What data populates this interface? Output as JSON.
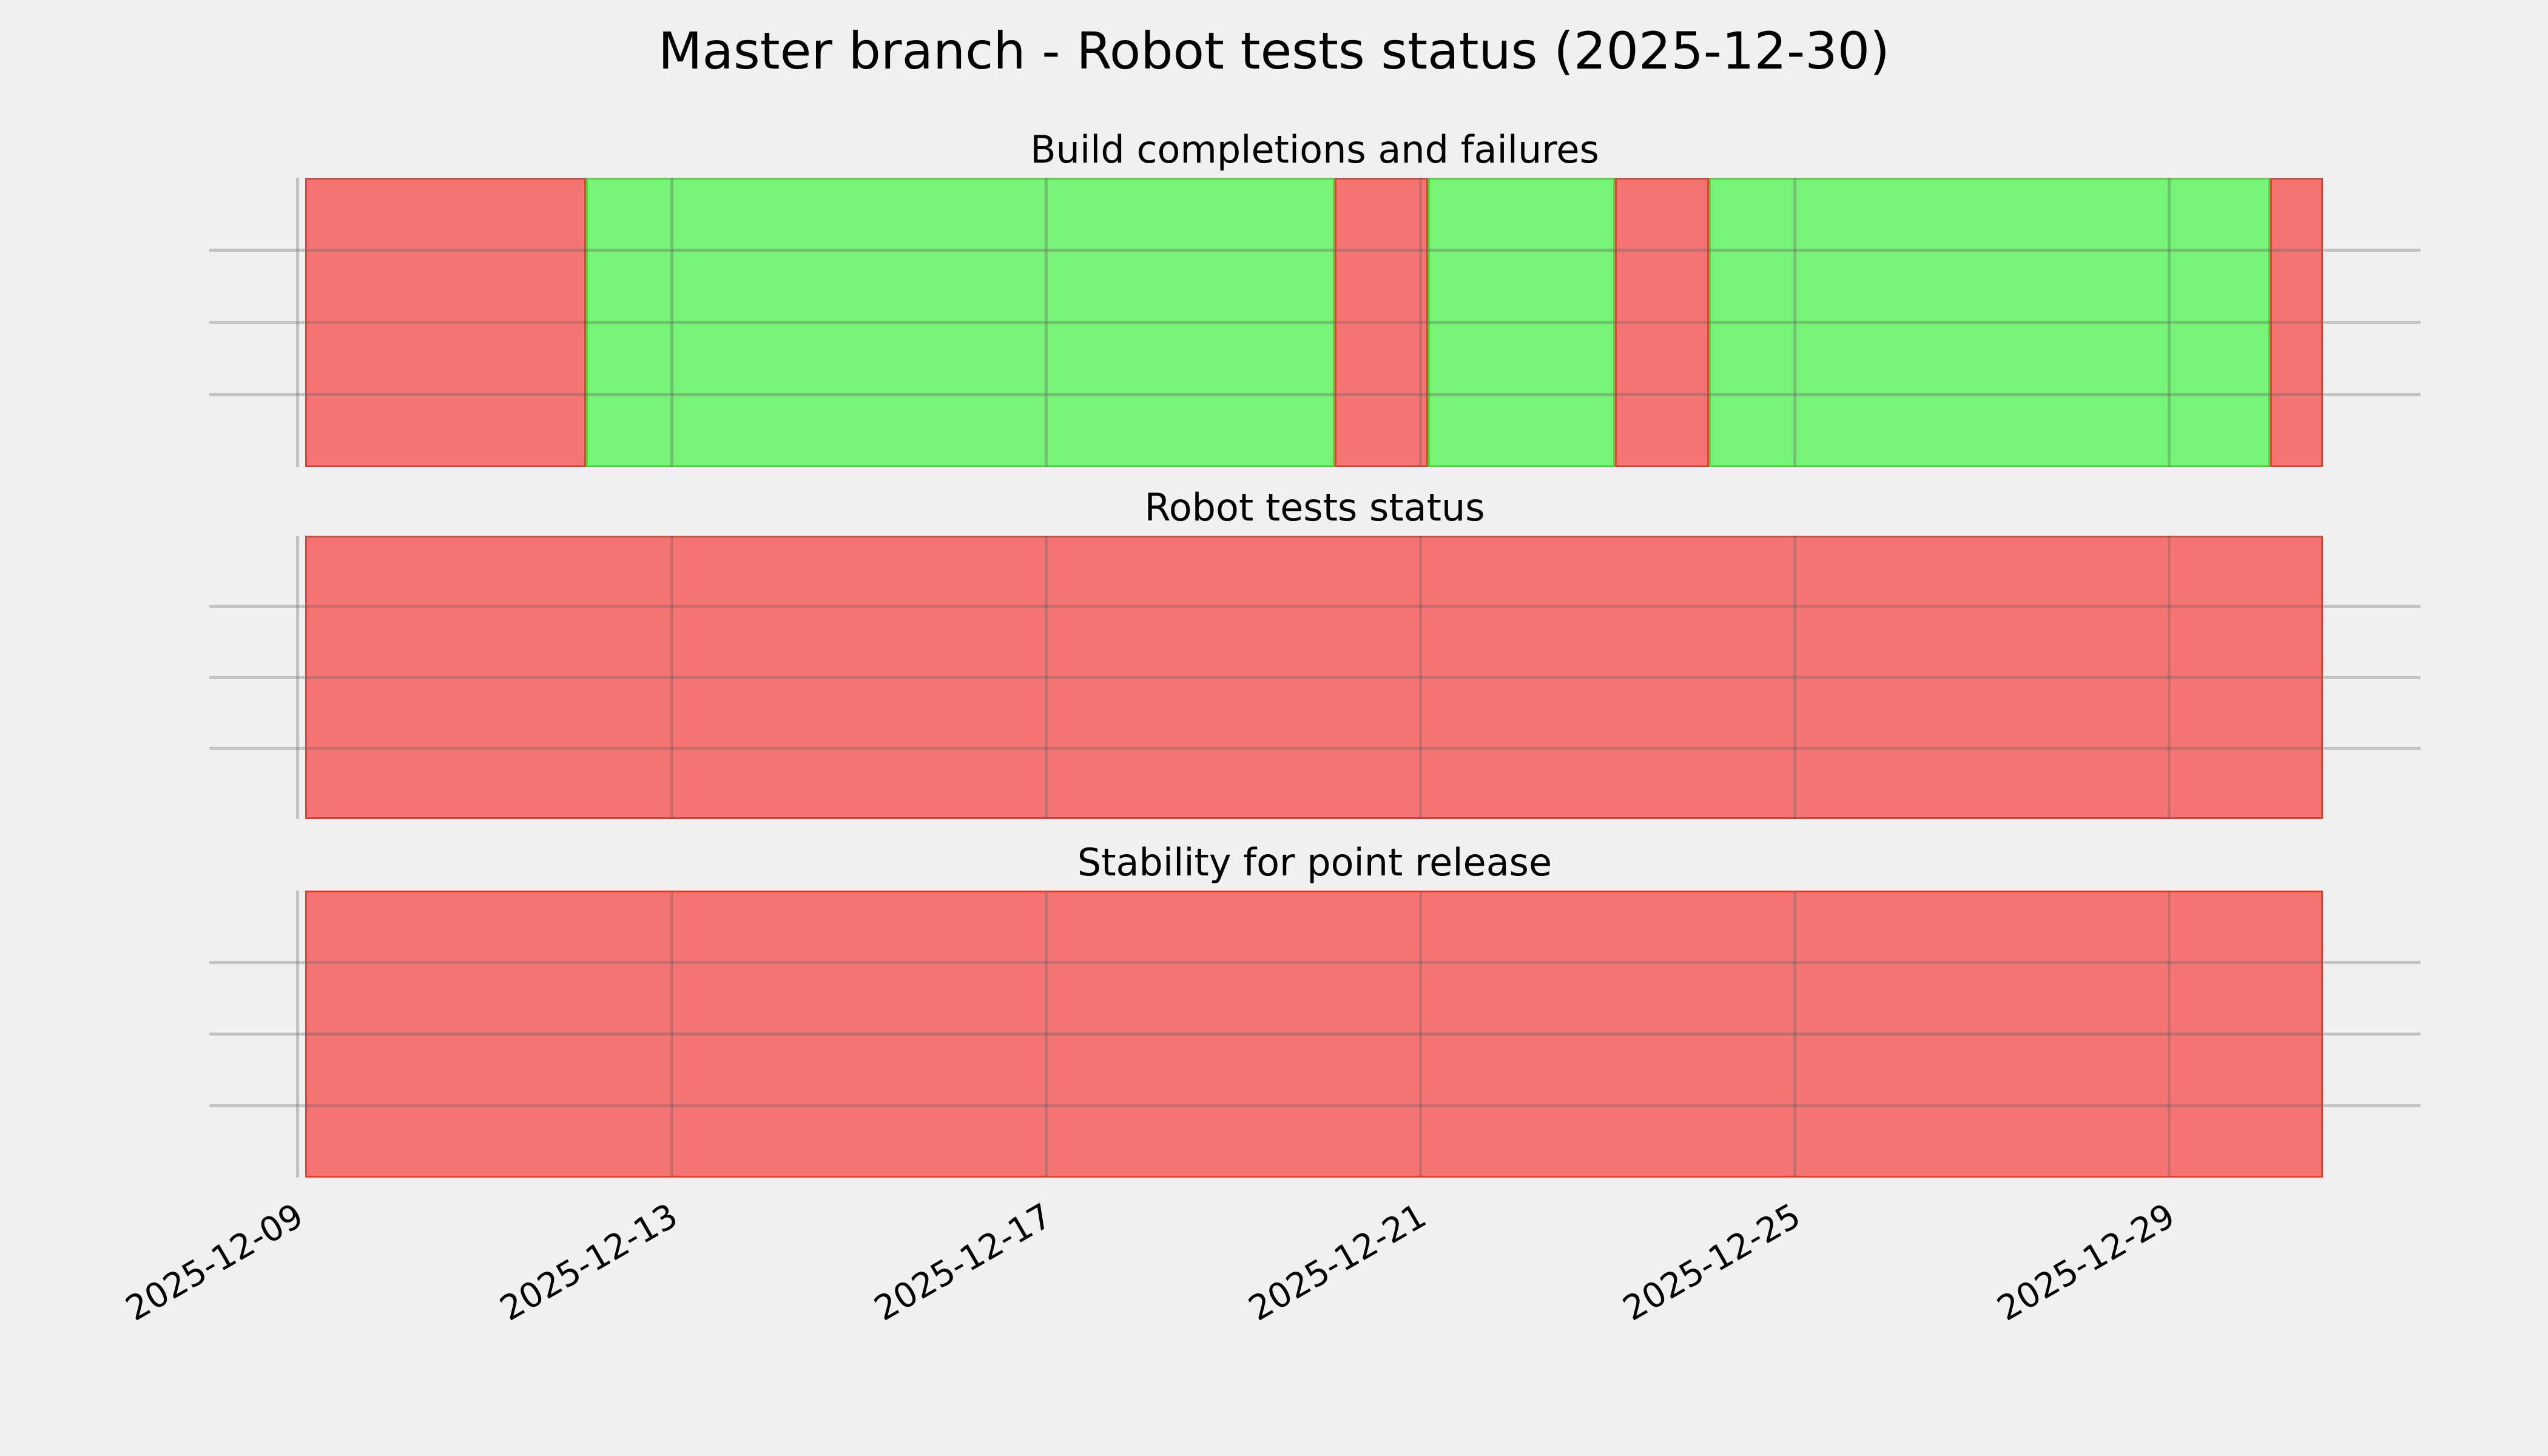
{
  "figure": {
    "title": "Master branch - Robot tests status (2025-12-30)"
  },
  "chart_data": {
    "type": "timeline-status-bars",
    "title": "Master branch - Robot tests status (2025-12-30)",
    "legend": null,
    "grid": true,
    "x_axis": {
      "tick_labels": [
        "2025-12-09",
        "2025-12-13",
        "2025-12-17",
        "2025-12-21",
        "2025-12-25",
        "2025-12-29"
      ],
      "tick_rotation_deg": 30,
      "range_start": "2025-12-09T02:00",
      "range_end": "2025-12-30T15:30"
    },
    "y_axis": {
      "tick_labels": [],
      "gridlines_per_panel": 3
    },
    "panels": [
      {
        "title": "Build completions and failures",
        "segments": [
          {
            "start": "2025-12-09T02:00",
            "end": "2025-12-12T02:00",
            "status": "failure"
          },
          {
            "start": "2025-12-12T02:00",
            "end": "2025-12-20T02:00",
            "status": "success"
          },
          {
            "start": "2025-12-20T02:00",
            "end": "2025-12-21T02:00",
            "status": "failure"
          },
          {
            "start": "2025-12-21T02:00",
            "end": "2025-12-23T02:00",
            "status": "success"
          },
          {
            "start": "2025-12-23T02:00",
            "end": "2025-12-24T02:00",
            "status": "failure"
          },
          {
            "start": "2025-12-24T02:00",
            "end": "2025-12-30T02:00",
            "status": "success"
          },
          {
            "start": "2025-12-30T02:00",
            "end": "2025-12-30T15:30",
            "status": "failure"
          }
        ]
      },
      {
        "title": "Robot tests status",
        "segments": [
          {
            "start": "2025-12-09T02:00",
            "end": "2025-12-30T15:30",
            "status": "failure"
          }
        ]
      },
      {
        "title": "Stability for point release",
        "segments": [
          {
            "start": "2025-12-09T02:00",
            "end": "2025-12-30T15:30",
            "status": "failure"
          }
        ]
      }
    ],
    "status_colors": {
      "success_fill": "#77f377",
      "success_edge": "#3ed628",
      "failure_fill": "#f57474",
      "failure_edge": "#dd3c28"
    },
    "colors": {
      "background": "#f0f0f0",
      "grid": "#cbcbcb",
      "text": "#000000"
    }
  }
}
